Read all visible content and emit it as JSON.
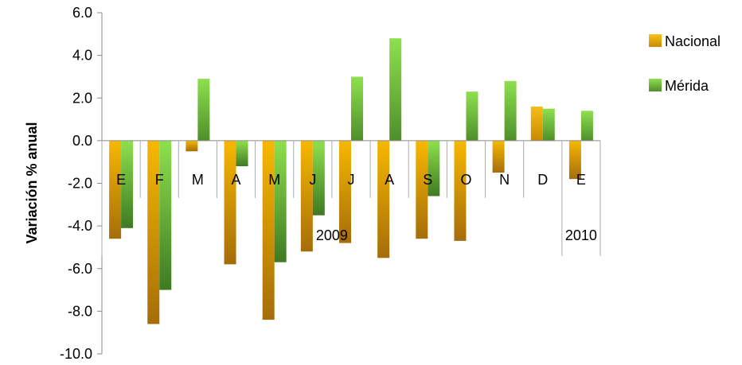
{
  "chart_data": {
    "type": "bar",
    "ylabel": "Variación % anual",
    "ylim": [
      -10,
      6
    ],
    "ytick_step": 2,
    "categories": [
      "E",
      "F",
      "M",
      "A",
      "M",
      "J",
      "J",
      "A",
      "S",
      "O",
      "N",
      "D",
      "E"
    ],
    "groups": [
      {
        "label": "2009",
        "start": 0,
        "end": 11
      },
      {
        "label": "2010",
        "start": 12,
        "end": 12
      }
    ],
    "series": [
      {
        "name": "Nacional",
        "color": "#e8a000",
        "values": [
          -4.6,
          -8.6,
          -0.5,
          -5.8,
          -8.4,
          -5.2,
          -4.8,
          -5.5,
          -4.6,
          -4.7,
          -1.5,
          1.6,
          -1.8
        ]
      },
      {
        "name": "Mérida",
        "color": "#5aa832",
        "values": [
          -4.1,
          -7.0,
          2.9,
          -1.2,
          -5.7,
          -3.5,
          3.0,
          4.8,
          -2.6,
          2.3,
          2.8,
          1.5,
          1.4
        ]
      }
    ],
    "legend_position": "right",
    "grid": false
  }
}
